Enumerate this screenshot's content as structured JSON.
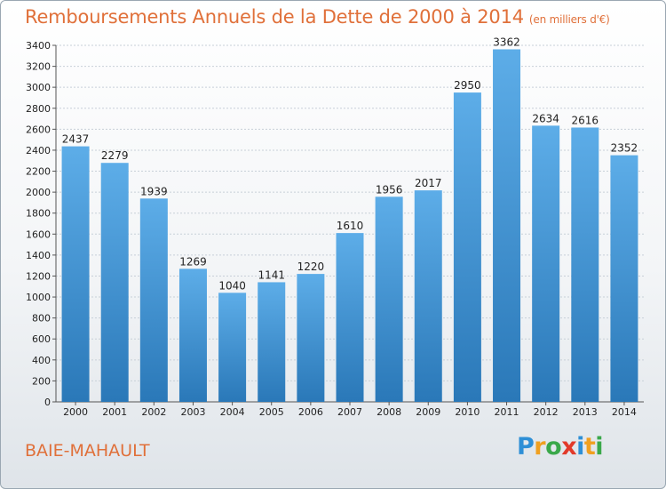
{
  "header": {
    "title": "Remboursements Annuels de la Dette de 2000 à 2014",
    "subtitle": "(en milliers d'€)"
  },
  "footer": {
    "commune": "BAIE-MAHAULT",
    "logo_text": "Proxiti"
  },
  "colors": {
    "title": "#e0703a",
    "bar_top": "#5dade8",
    "bar_bottom": "#2a78b8"
  },
  "chart_data": {
    "type": "bar",
    "categories": [
      "2000",
      "2001",
      "2002",
      "2003",
      "2004",
      "2005",
      "2006",
      "2007",
      "2008",
      "2009",
      "2010",
      "2011",
      "2012",
      "2013",
      "2014"
    ],
    "values": [
      2437,
      2279,
      1939,
      1269,
      1040,
      1141,
      1220,
      1610,
      1956,
      2017,
      2950,
      3362,
      2634,
      2616,
      2352
    ],
    "title": "Remboursements Annuels de la Dette de 2000 à 2014",
    "subtitle": "(en milliers d'€)",
    "xlabel": "",
    "ylabel": "",
    "ylim": [
      0,
      3400
    ],
    "ytick_step": 200,
    "grid": true,
    "data_labels": true
  }
}
